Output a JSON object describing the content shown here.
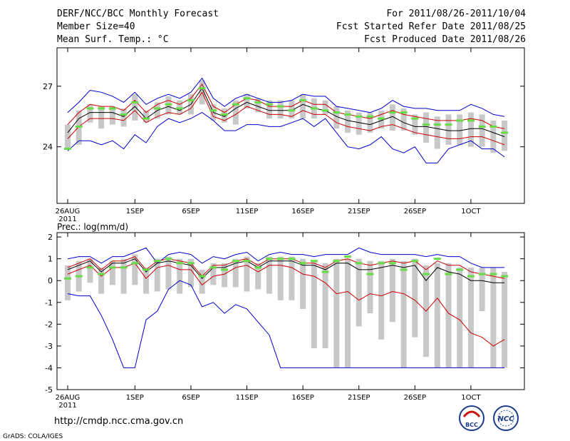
{
  "header": {
    "title": "DERF/NCC/BCC Monthly Forecast",
    "member_size": "Member Size=40",
    "variable": "Mean Surf. Temp.: °C",
    "period": "For 2011/08/26-2011/10/04",
    "started": "Fcst Started Refer Date 2011/08/25",
    "produced": "Fcst Produced Date 2011/08/26"
  },
  "footer": {
    "url": "http://cmdp.ncc.cma.gov.cn",
    "grads": "GrADS: COLA/IGES",
    "logo_bcc": "BCC",
    "logo_ncc": "NCC"
  },
  "chart_data": [
    {
      "type": "box",
      "title": "Mean Surf. Temp.: °C",
      "xlabel": "",
      "ylabel": "",
      "ylim": [
        21.2,
        28.9
      ],
      "yticks": [
        {
          "v": 24,
          "label": "24"
        },
        {
          "v": 27,
          "label": "27"
        }
      ],
      "xticks": [
        {
          "i": 0,
          "label": "26AUG",
          "sub": "2011"
        },
        {
          "i": 6,
          "label": "1SEP"
        },
        {
          "i": 11,
          "label": "6SEP"
        },
        {
          "i": 16,
          "label": "11SEP"
        },
        {
          "i": 21,
          "label": "16SEP"
        },
        {
          "i": 26,
          "label": "21SEP"
        },
        {
          "i": 31,
          "label": "26SEP"
        },
        {
          "i": 36,
          "label": "1OCT"
        }
      ],
      "series": [
        {
          "name": "max",
          "color": "#0000cc",
          "values": [
            25.7,
            26.2,
            26.8,
            26.7,
            26.5,
            26.2,
            26.7,
            26.1,
            26.4,
            26.6,
            26.4,
            26.7,
            27.4,
            26.4,
            26.0,
            26.4,
            26.6,
            26.4,
            26.2,
            26.2,
            26.3,
            26.6,
            26.5,
            26.5,
            26.0,
            25.9,
            25.8,
            25.7,
            25.9,
            26.3,
            26.0,
            25.9,
            25.9,
            25.8,
            25.8,
            25.8,
            26.1,
            25.9,
            25.6,
            25.5
          ]
        },
        {
          "name": "upper",
          "color": "#cc0000",
          "values": [
            25.1,
            25.7,
            26.1,
            26.0,
            26.0,
            25.8,
            26.3,
            25.7,
            26.1,
            26.3,
            26.1,
            26.4,
            27.1,
            26.0,
            25.7,
            26.1,
            26.4,
            26.3,
            26.0,
            26.0,
            26.0,
            26.3,
            26.1,
            26.1,
            25.7,
            25.6,
            25.5,
            25.4,
            25.6,
            25.8,
            25.6,
            25.5,
            25.4,
            25.3,
            25.3,
            25.3,
            25.4,
            25.3,
            25.0,
            24.9
          ]
        },
        {
          "name": "mean",
          "color": "#000000",
          "values": [
            24.7,
            25.4,
            25.7,
            25.7,
            25.7,
            25.5,
            26.0,
            25.4,
            25.8,
            26.0,
            25.8,
            26.1,
            26.9,
            25.7,
            25.5,
            25.9,
            26.2,
            26.0,
            25.8,
            25.8,
            25.8,
            26.1,
            25.9,
            25.8,
            25.5,
            25.3,
            25.2,
            25.1,
            25.3,
            25.5,
            25.2,
            25.0,
            25.0,
            24.9,
            24.8,
            24.8,
            24.9,
            24.9,
            24.7,
            24.5
          ]
        },
        {
          "name": "lower",
          "color": "#cc0000",
          "values": [
            24.4,
            25.0,
            25.4,
            25.4,
            25.4,
            25.3,
            25.8,
            25.2,
            25.5,
            25.7,
            25.6,
            25.9,
            26.7,
            25.5,
            25.3,
            25.6,
            26.0,
            25.8,
            25.6,
            25.6,
            25.5,
            25.8,
            25.6,
            25.6,
            25.2,
            25.0,
            24.9,
            24.8,
            25.0,
            25.1,
            24.9,
            24.7,
            24.6,
            24.5,
            24.4,
            24.4,
            24.5,
            24.5,
            24.3,
            24.1
          ]
        },
        {
          "name": "min",
          "color": "#0000cc",
          "values": [
            23.8,
            24.3,
            24.3,
            24.1,
            24.3,
            23.9,
            24.6,
            24.2,
            25.0,
            25.4,
            25.2,
            25.4,
            25.7,
            25.3,
            24.8,
            24.8,
            25.1,
            25.1,
            25.0,
            25.0,
            25.2,
            25.4,
            25.0,
            25.4,
            24.7,
            24.0,
            23.9,
            24.1,
            24.5,
            23.9,
            23.7,
            24.0,
            23.2,
            23.2,
            23.9,
            24.1,
            24.3,
            23.9,
            23.9,
            23.5
          ]
        },
        {
          "name": "observed",
          "color": "#66dd44",
          "values": [
            23.9,
            25.0,
            25.9,
            25.9,
            25.9,
            25.6,
            26.2,
            25.4,
            25.9,
            26.1,
            25.9,
            26.3,
            26.9,
            25.8,
            25.6,
            26.1,
            26.4,
            26.2,
            26.1,
            26.0,
            25.8,
            26.3,
            25.9,
            25.8,
            25.7,
            25.6,
            25.5,
            25.5,
            25.4,
            25.7,
            25.7,
            25.4,
            25.1,
            25.1,
            25.1,
            25.3,
            25.3,
            25.0,
            25.0,
            24.7
          ]
        }
      ],
      "boxes": {
        "hi": [
          25.1,
          25.8,
          26.1,
          26.0,
          26.0,
          25.9,
          26.6,
          25.8,
          26.2,
          26.5,
          26.3,
          26.6,
          27.3,
          26.1,
          25.9,
          26.3,
          26.6,
          26.4,
          26.3,
          26.3,
          26.3,
          26.6,
          26.4,
          26.3,
          26.0,
          25.8,
          25.7,
          25.7,
          25.8,
          26.1,
          25.9,
          25.6,
          25.7,
          25.5,
          25.6,
          25.6,
          25.7,
          25.6,
          25.3,
          25.3
        ],
        "lo": [
          23.9,
          24.1,
          25.2,
          24.9,
          25.1,
          25.0,
          25.3,
          25.2,
          25.4,
          25.6,
          25.6,
          25.6,
          26.1,
          25.3,
          25.2,
          25.1,
          25.9,
          25.7,
          25.4,
          25.4,
          25.4,
          25.4,
          25.4,
          25.6,
          24.9,
          24.7,
          24.6,
          24.7,
          24.9,
          24.8,
          24.8,
          24.6,
          24.2,
          23.9,
          24.1,
          24.1,
          24.0,
          24.0,
          23.7,
          23.8
        ]
      }
    },
    {
      "type": "box",
      "title": "Prec.: log(mm/d)",
      "xlabel": "",
      "ylabel": "",
      "ylim": [
        -5,
        2.2
      ],
      "yticks": [
        {
          "v": 2,
          "label": "2"
        },
        {
          "v": 1,
          "label": "1"
        },
        {
          "v": 0,
          "label": "0"
        },
        {
          "v": -1,
          "label": "-1"
        },
        {
          "v": -2,
          "label": "-2"
        },
        {
          "v": -3,
          "label": "-3"
        },
        {
          "v": -4,
          "label": "-4"
        },
        {
          "v": -5,
          "label": "-5"
        }
      ],
      "xticks": [
        {
          "i": 0,
          "label": "26AUG",
          "sub": "2011"
        },
        {
          "i": 6,
          "label": "1SEP"
        },
        {
          "i": 11,
          "label": "6SEP"
        },
        {
          "i": 16,
          "label": "11SEP"
        },
        {
          "i": 21,
          "label": "16SEP"
        },
        {
          "i": 26,
          "label": "21SEP"
        },
        {
          "i": 31,
          "label": "26SEP"
        },
        {
          "i": 36,
          "label": "1OCT"
        }
      ],
      "series": [
        {
          "name": "max",
          "color": "#0000cc",
          "values": [
            1.0,
            1.1,
            1.1,
            0.8,
            1.1,
            1.1,
            1.3,
            1.5,
            0.8,
            1.2,
            1.3,
            1.2,
            0.8,
            1.1,
            1.0,
            1.2,
            1.3,
            0.9,
            1.2,
            1.3,
            1.2,
            1.2,
            1.1,
            1.2,
            1.2,
            1.2,
            1.5,
            1.3,
            1.2,
            1.2,
            1.2,
            1.2,
            1.1,
            1.2,
            1.1,
            1.1,
            0.8,
            0.6,
            0.6,
            0.6
          ]
        },
        {
          "name": "upper",
          "color": "#cc0000",
          "values": [
            0.6,
            0.8,
            1.0,
            0.5,
            0.9,
            0.9,
            1.1,
            0.5,
            0.9,
            1.0,
            0.9,
            0.8,
            0.2,
            0.7,
            0.7,
            0.9,
            1.0,
            0.7,
            1.0,
            1.0,
            1.0,
            0.8,
            0.8,
            0.6,
            0.9,
            1.0,
            0.8,
            0.7,
            0.8,
            0.9,
            0.8,
            0.9,
            0.5,
            0.9,
            0.7,
            0.7,
            0.4,
            0.3,
            0.2,
            0.1
          ]
        },
        {
          "name": "mean",
          "color": "#000000",
          "values": [
            0.5,
            0.7,
            0.9,
            0.4,
            0.8,
            0.8,
            1.0,
            0.4,
            0.8,
            0.9,
            0.8,
            0.7,
            0.1,
            0.6,
            0.6,
            0.8,
            0.9,
            0.6,
            0.9,
            0.9,
            0.9,
            0.7,
            0.7,
            0.5,
            0.8,
            0.8,
            0.5,
            0.5,
            0.6,
            0.7,
            0.6,
            0.7,
            0.0,
            0.6,
            0.4,
            0.3,
            0.0,
            0.0,
            -0.1,
            -0.1
          ]
        },
        {
          "name": "lower",
          "color": "#cc0000",
          "values": [
            0.3,
            0.5,
            0.7,
            0.2,
            0.6,
            0.6,
            0.8,
            0.1,
            0.6,
            0.7,
            0.5,
            0.5,
            -0.2,
            0.2,
            0.3,
            0.6,
            0.7,
            0.4,
            0.7,
            0.7,
            0.6,
            0.3,
            0.2,
            -0.1,
            -0.6,
            -0.5,
            -0.9,
            -0.6,
            -0.7,
            -0.5,
            -0.6,
            -0.9,
            -1.4,
            -0.8,
            -1.5,
            -1.8,
            -2.4,
            -2.6,
            -3.0,
            -2.7
          ]
        },
        {
          "name": "min",
          "color": "#0000cc",
          "values": [
            -0.6,
            -0.7,
            -0.7,
            -1.6,
            -2.7,
            -4.0,
            -4.0,
            -1.8,
            -1.4,
            -0.4,
            0.0,
            -0.2,
            -1.2,
            -1.0,
            -1.5,
            -1.1,
            -1.3,
            -1.9,
            -2.5,
            -4.0,
            -4.0,
            -4.0,
            -4.0,
            -4.0,
            -4.0,
            -4.0,
            -4.0,
            -4.0,
            -4.0,
            -4.0,
            -4.0,
            -4.0,
            -4.0,
            -4.0,
            -4.0,
            -4.0,
            -4.0,
            -4.0,
            -4.0,
            -4.0
          ]
        },
        {
          "name": "observed",
          "color": "#66dd44",
          "values": [
            0.1,
            0.2,
            0.6,
            0.3,
            0.6,
            0.6,
            0.8,
            0.5,
            0.9,
            1.0,
            0.8,
            0.8,
            0.2,
            0.6,
            0.5,
            0.9,
            0.9,
            0.6,
            1.0,
            1.0,
            1.0,
            0.8,
            0.9,
            0.4,
            0.9,
            1.1,
            0.8,
            0.3,
            0.8,
            0.8,
            0.5,
            0.9,
            0.3,
            1.0,
            0.3,
            0.5,
            0.2,
            0.3,
            0.3,
            0.2
          ]
        }
      ],
      "boxes": {
        "hi": [
          0.7,
          0.9,
          1.0,
          0.6,
          0.9,
          1.0,
          1.2,
          0.6,
          1.0,
          1.1,
          1.0,
          1.0,
          0.5,
          0.8,
          0.8,
          1.0,
          1.1,
          0.8,
          1.1,
          1.1,
          1.1,
          1.0,
          0.9,
          0.8,
          1.0,
          1.0,
          1.0,
          0.9,
          0.9,
          1.0,
          0.9,
          1.0,
          0.7,
          0.8,
          0.8,
          0.6,
          0.6,
          0.6,
          0.6,
          0.4
        ],
        "lo": [
          -0.9,
          -0.5,
          -0.1,
          -0.6,
          -0.2,
          -0.6,
          -0.2,
          -0.6,
          -0.5,
          -0.4,
          -0.6,
          -0.3,
          -0.6,
          -0.2,
          -0.3,
          -0.3,
          -0.5,
          -0.4,
          -0.6,
          -0.9,
          -0.9,
          -1.3,
          -3.1,
          -3.1,
          -4.0,
          -4.0,
          -2.1,
          -1.5,
          -2.7,
          -1.9,
          -4.0,
          -2.6,
          -3.5,
          -4.0,
          -4.0,
          -4.0,
          -4.0,
          -1.4,
          -4.0,
          -4.0
        ]
      }
    }
  ]
}
